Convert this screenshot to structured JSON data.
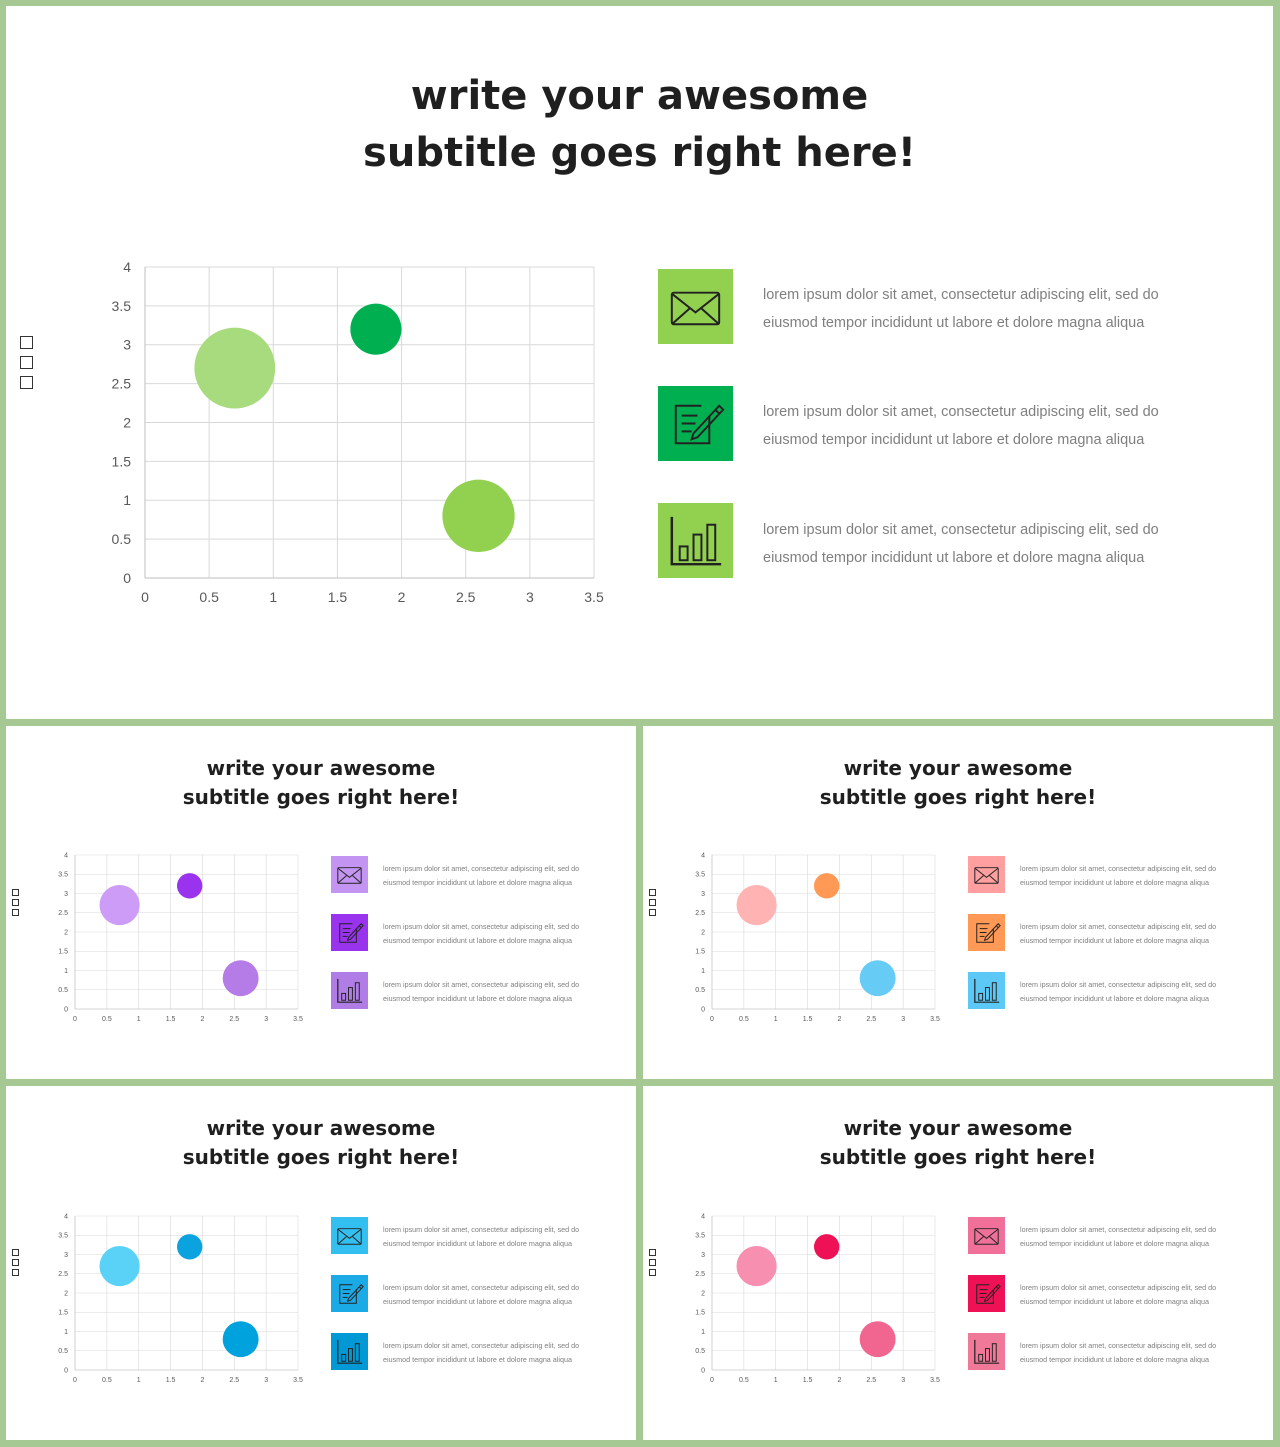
{
  "slides": [
    {
      "title_line1": "write your awesome",
      "title_line2": "subtitle goes right here!",
      "theme": {
        "bubbles": [
          "#a8db7e",
          "#00b050",
          "#92d050"
        ],
        "icons": [
          "#92d050",
          "#00b050",
          "#92d050"
        ]
      },
      "items": [
        {
          "icon": "envelope-icon",
          "text": "lorem ipsum dolor sit amet, consectetur adipiscing elit, sed do eiusmod tempor  incididunt ut labore et dolore magna aliqua"
        },
        {
          "icon": "edit-document-icon",
          "text": "lorem ipsum dolor sit amet, consectetur adipiscing elit, sed do eiusmod tempor  incididunt ut labore et dolore magna aliqua"
        },
        {
          "icon": "bar-chart-icon",
          "text": "lorem ipsum dolor sit amet, consectetur adipiscing elit, sed do eiusmod tempor  incididunt ut labore et dolore magna aliqua"
        }
      ]
    },
    {
      "title_line1": "write your awesome",
      "title_line2": "subtitle goes right here!",
      "theme": {
        "bubbles": [
          "#cc9cf7",
          "#9933ee",
          "#b57be6"
        ],
        "icons": [
          "#c494f2",
          "#9933ee",
          "#b07de6"
        ]
      },
      "items": [
        {
          "icon": "envelope-icon",
          "text": "lorem ipsum dolor sit amet, consectetur adipiscing elit, sed do eiusmod tempor  incididunt ut labore et dolore magna aliqua"
        },
        {
          "icon": "edit-document-icon",
          "text": "lorem ipsum dolor sit amet, consectetur adipiscing elit, sed do eiusmod tempor  incididunt ut labore et dolore magna aliqua"
        },
        {
          "icon": "bar-chart-icon",
          "text": "lorem ipsum dolor sit amet, consectetur adipiscing elit, sed do eiusmod tempor  incididunt ut labore et dolore magna aliqua"
        }
      ]
    },
    {
      "title_line1": "write your awesome",
      "title_line2": "subtitle goes right here!",
      "theme": {
        "bubbles": [
          "#ffb3b3",
          "#ff9955",
          "#66ccf5"
        ],
        "icons": [
          "#ff9f9f",
          "#ff9955",
          "#5bc8f5"
        ]
      },
      "items": [
        {
          "icon": "envelope-icon",
          "text": "lorem ipsum dolor sit amet, consectetur adipiscing elit, sed do eiusmod tempor  incididunt ut labore et dolore magna aliqua"
        },
        {
          "icon": "edit-document-icon",
          "text": "lorem ipsum dolor sit amet, consectetur adipiscing elit, sed do eiusmod tempor  incididunt ut labore et dolore magna aliqua"
        },
        {
          "icon": "bar-chart-icon",
          "text": "lorem ipsum dolor sit amet, consectetur adipiscing elit, sed do eiusmod tempor  incididunt ut labore et dolore magna aliqua"
        }
      ]
    },
    {
      "title_line1": "write your awesome",
      "title_line2": "subtitle goes right here!",
      "theme": {
        "bubbles": [
          "#5ad2f7",
          "#0aa3e0",
          "#00a2dd"
        ],
        "icons": [
          "#33c0f0",
          "#1aaae6",
          "#0099d6"
        ]
      },
      "items": [
        {
          "icon": "envelope-icon",
          "text": "lorem ipsum dolor sit amet, consectetur adipiscing elit, sed do eiusmod tempor  incididunt ut labore et dolore magna aliqua"
        },
        {
          "icon": "edit-document-icon",
          "text": "lorem ipsum dolor sit amet, consectetur adipiscing elit, sed do eiusmod tempor  incididunt ut labore et dolore magna aliqua"
        },
        {
          "icon": "bar-chart-icon",
          "text": "lorem ipsum dolor sit amet, consectetur adipiscing elit, sed do eiusmod tempor  incididunt ut labore et dolore magna aliqua"
        }
      ]
    },
    {
      "title_line1": "write your awesome",
      "title_line2": "subtitle goes right here!",
      "theme": {
        "bubbles": [
          "#f78fb0",
          "#ee1155",
          "#f06690"
        ],
        "icons": [
          "#f0709a",
          "#ee1155",
          "#f07898"
        ]
      },
      "items": [
        {
          "icon": "envelope-icon",
          "text": "lorem ipsum dolor sit amet, consectetur adipiscing elit, sed do eiusmod tempor  incididunt ut labore et dolore magna aliqua"
        },
        {
          "icon": "edit-document-icon",
          "text": "lorem ipsum dolor sit amet, consectetur adipiscing elit, sed do eiusmod tempor  incididunt ut labore et dolore magna aliqua"
        },
        {
          "icon": "bar-chart-icon",
          "text": "lorem ipsum dolor sit amet, consectetur adipiscing elit, sed do eiusmod tempor  incididunt ut labore et dolore magna aliqua"
        }
      ]
    }
  ],
  "chart_data": {
    "type": "bubble",
    "xlim": [
      0,
      3.5
    ],
    "ylim": [
      0,
      4
    ],
    "x_ticks": [
      "0",
      "0.5",
      "1",
      "1.5",
      "2",
      "2.5",
      "3",
      "3.5"
    ],
    "y_ticks": [
      "0",
      "0.5",
      "1",
      "1.5",
      "2",
      "2.5",
      "3",
      "3.5",
      "4"
    ],
    "grid": true,
    "points": [
      {
        "x": 0.7,
        "y": 2.7,
        "size": 1.0
      },
      {
        "x": 1.8,
        "y": 3.2,
        "size": 0.4
      },
      {
        "x": 2.6,
        "y": 0.8,
        "size": 0.8
      }
    ],
    "legend_markers": 3
  }
}
